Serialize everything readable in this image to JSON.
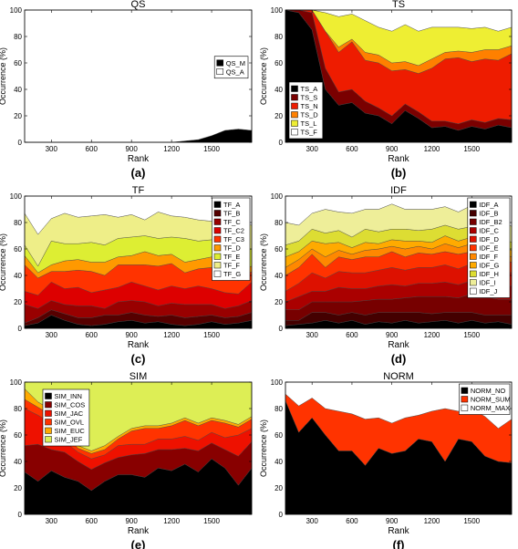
{
  "chart_data": [
    {
      "type": "area",
      "title": "QS",
      "panel_label": "(a)",
      "xlabel": "Rank",
      "ylabel": "Occurrence (%)",
      "xlim": [
        100,
        1800
      ],
      "ylim": [
        0,
        100
      ],
      "xticks": [
        300,
        600,
        900,
        1200,
        1500
      ],
      "yticks": [
        0,
        20,
        40,
        60,
        80,
        100
      ],
      "legend_position": "middle-right",
      "x": [
        100,
        200,
        300,
        400,
        500,
        600,
        700,
        800,
        900,
        1000,
        1100,
        1200,
        1300,
        1400,
        1500,
        1600,
        1700,
        1800
      ],
      "series": [
        {
          "name": "QS_M",
          "color": "#000000",
          "values": [
            0,
            0,
            0,
            0,
            0,
            0,
            0,
            0,
            0,
            0,
            0,
            0,
            1,
            2,
            5,
            9,
            10,
            9
          ]
        },
        {
          "name": "QS_A",
          "color": "#ffffff",
          "values": [
            100,
            100,
            100,
            100,
            100,
            100,
            100,
            100,
            100,
            100,
            100,
            100,
            99,
            98,
            95,
            91,
            90,
            91
          ]
        }
      ]
    },
    {
      "type": "area",
      "title": "TS",
      "panel_label": "(b)",
      "xlabel": "Rank",
      "ylabel": "Occurrence (%)",
      "xlim": [
        100,
        1800
      ],
      "ylim": [
        0,
        100
      ],
      "xticks": [
        300,
        600,
        900,
        1200,
        1500
      ],
      "yticks": [
        0,
        20,
        40,
        60,
        80,
        100
      ],
      "legend_position": "lower-left",
      "x": [
        100,
        200,
        300,
        400,
        500,
        600,
        700,
        800,
        900,
        1000,
        1100,
        1200,
        1300,
        1400,
        1500,
        1600,
        1700,
        1800
      ],
      "series": [
        {
          "name": "TS_A",
          "color": "#000000",
          "values": [
            100,
            98,
            85,
            40,
            28,
            30,
            22,
            20,
            14,
            24,
            18,
            11,
            12,
            9,
            12,
            10,
            13,
            11
          ]
        },
        {
          "name": "TS_S",
          "color": "#7a0000",
          "values": [
            0,
            2,
            13,
            16,
            10,
            10,
            9,
            6,
            6,
            5,
            5,
            5,
            4,
            5,
            5,
            5,
            5,
            6
          ]
        },
        {
          "name": "TS_N",
          "color": "#ee1c00",
          "values": [
            0,
            0,
            2,
            28,
            30,
            36,
            31,
            34,
            34,
            26,
            29,
            40,
            47,
            50,
            44,
            48,
            44,
            50
          ]
        },
        {
          "name": "TS_D",
          "color": "#ff8000",
          "values": [
            0,
            0,
            0,
            0,
            4,
            2,
            6,
            6,
            6,
            6,
            6,
            7,
            5,
            5,
            7,
            7,
            8,
            6
          ]
        },
        {
          "name": "TS_L",
          "color": "#eeee33",
          "values": [
            0,
            0,
            0,
            14,
            23,
            19,
            24,
            21,
            24,
            28,
            26,
            24,
            19,
            18,
            18,
            17,
            14,
            14
          ]
        },
        {
          "name": "TS_F",
          "color": "#ffffff",
          "values": [
            0,
            0,
            0,
            2,
            5,
            3,
            8,
            13,
            16,
            11,
            16,
            13,
            13,
            13,
            14,
            13,
            16,
            13
          ]
        }
      ]
    },
    {
      "type": "area",
      "title": "TF",
      "panel_label": "(c)",
      "xlabel": "Rank",
      "ylabel": "Occurrence (%)",
      "xlim": [
        100,
        1800
      ],
      "ylim": [
        0,
        100
      ],
      "xticks": [
        300,
        600,
        900,
        1200,
        1500
      ],
      "yticks": [
        0,
        20,
        40,
        60,
        80,
        100
      ],
      "legend_position": "top-right",
      "x": [
        100,
        200,
        300,
        400,
        500,
        600,
        700,
        800,
        900,
        1000,
        1100,
        1200,
        1300,
        1400,
        1500,
        1600,
        1700,
        1800
      ],
      "series": [
        {
          "name": "TF_A",
          "color": "#000000",
          "values": [
            2,
            4,
            10,
            6,
            3,
            2,
            3,
            5,
            6,
            4,
            5,
            3,
            2,
            3,
            5,
            3,
            4,
            6
          ]
        },
        {
          "name": "TF_B",
          "color": "#550000",
          "values": [
            2,
            4,
            4,
            5,
            5,
            6,
            7,
            5,
            6,
            6,
            4,
            7,
            6,
            6,
            5,
            5,
            5,
            6
          ]
        },
        {
          "name": "TF_C",
          "color": "#990000",
          "values": [
            14,
            7,
            7,
            7,
            9,
            9,
            5,
            10,
            9,
            10,
            8,
            9,
            10,
            9,
            8,
            7,
            8,
            9
          ]
        },
        {
          "name": "TF_C2",
          "color": "#dd0000",
          "values": [
            10,
            10,
            14,
            12,
            14,
            10,
            14,
            11,
            14,
            12,
            12,
            13,
            12,
            14,
            12,
            12,
            9,
            14
          ]
        },
        {
          "name": "TF_C3",
          "color": "#ff3300",
          "values": [
            20,
            13,
            8,
            13,
            13,
            16,
            11,
            17,
            13,
            16,
            18,
            17,
            12,
            13,
            16,
            14,
            10,
            8
          ]
        },
        {
          "name": "TF_D",
          "color": "#ff9900",
          "values": [
            7,
            4,
            5,
            8,
            8,
            7,
            10,
            6,
            7,
            10,
            8,
            7,
            8,
            7,
            8,
            7,
            8,
            4
          ]
        },
        {
          "name": "TF_E",
          "color": "#ddee33",
          "values": [
            8,
            5,
            18,
            13,
            12,
            15,
            13,
            14,
            14,
            12,
            13,
            13,
            18,
            14,
            13,
            16,
            15,
            13
          ]
        },
        {
          "name": "TF_F",
          "color": "#eeee88",
          "values": [
            24,
            24,
            17,
            23,
            20,
            20,
            23,
            16,
            17,
            12,
            20,
            16,
            16,
            16,
            14,
            14,
            20,
            18
          ]
        },
        {
          "name": "TF_G",
          "color": "#ffffff",
          "values": [
            13,
            29,
            17,
            13,
            16,
            15,
            14,
            16,
            14,
            18,
            12,
            15,
            16,
            18,
            19,
            22,
            21,
            22
          ]
        }
      ]
    },
    {
      "type": "area",
      "title": "IDF",
      "panel_label": "(d)",
      "xlabel": "Rank",
      "ylabel": "Occurrence (%)",
      "xlim": [
        100,
        1800
      ],
      "ylim": [
        0,
        100
      ],
      "xticks": [
        300,
        600,
        900,
        1200,
        1500
      ],
      "yticks": [
        0,
        20,
        40,
        60,
        80,
        100
      ],
      "legend_position": "top-right",
      "x": [
        100,
        200,
        300,
        400,
        500,
        600,
        700,
        800,
        900,
        1000,
        1100,
        1200,
        1300,
        1400,
        1500,
        1600,
        1700,
        1800
      ],
      "series": [
        {
          "name": "IDF_A",
          "color": "#000000",
          "values": [
            2,
            3,
            4,
            6,
            4,
            6,
            3,
            5,
            4,
            6,
            4,
            5,
            6,
            4,
            6,
            4,
            5,
            3
          ]
        },
        {
          "name": "IDF_B",
          "color": "#440000",
          "values": [
            4,
            3,
            8,
            6,
            6,
            6,
            7,
            7,
            8,
            6,
            8,
            6,
            6,
            8,
            6,
            6,
            5,
            7
          ]
        },
        {
          "name": "IDF_B2",
          "color": "#770000",
          "values": [
            8,
            8,
            8,
            8,
            10,
            8,
            11,
            10,
            10,
            11,
            12,
            13,
            12,
            11,
            14,
            14,
            12,
            12
          ]
        },
        {
          "name": "IDF_C",
          "color": "#aa0000",
          "values": [
            6,
            10,
            8,
            8,
            11,
            10,
            9,
            10,
            11,
            9,
            10,
            10,
            11,
            10,
            10,
            10,
            10,
            10
          ]
        },
        {
          "name": "IDF_D",
          "color": "#dd1100",
          "values": [
            8,
            10,
            14,
            10,
            12,
            12,
            12,
            12,
            13,
            12,
            12,
            12,
            13,
            12,
            13,
            11,
            12,
            10
          ]
        },
        {
          "name": "IDF_E",
          "color": "#ff3300",
          "values": [
            12,
            12,
            14,
            8,
            11,
            10,
            12,
            10,
            12,
            10,
            11,
            10,
            10,
            11,
            9,
            10,
            9,
            8
          ]
        },
        {
          "name": "IDF_F",
          "color": "#ff8800",
          "values": [
            6,
            6,
            4,
            8,
            5,
            4,
            5,
            6,
            4,
            6,
            5,
            4,
            6,
            5,
            6,
            4,
            5,
            4
          ]
        },
        {
          "name": "IDF_G",
          "color": "#ffaa00",
          "values": [
            8,
            6,
            6,
            10,
            6,
            5,
            6,
            4,
            5,
            6,
            4,
            5,
            6,
            5,
            5,
            4,
            4,
            5
          ]
        },
        {
          "name": "IDF_H",
          "color": "#dddd33",
          "values": [
            9,
            8,
            9,
            8,
            9,
            8,
            10,
            9,
            8,
            9,
            8,
            10,
            8,
            9,
            8,
            9,
            8,
            6
          ]
        },
        {
          "name": "IDF_I",
          "color": "#eeee99",
          "values": [
            17,
            12,
            12,
            18,
            14,
            18,
            15,
            17,
            19,
            15,
            16,
            15,
            14,
            13,
            16,
            13,
            14,
            12
          ]
        },
        {
          "name": "IDF_J",
          "color": "#ffffff",
          "values": [
            20,
            22,
            13,
            10,
            12,
            13,
            10,
            10,
            6,
            10,
            10,
            10,
            8,
            12,
            7,
            15,
            16,
            23
          ]
        }
      ]
    },
    {
      "type": "area",
      "title": "SIM",
      "panel_label": "(e)",
      "xlabel": "Rank",
      "ylabel": "Occurrence (%)",
      "xlim": [
        100,
        1800
      ],
      "ylim": [
        0,
        100
      ],
      "xticks": [
        300,
        600,
        900,
        1200,
        1500
      ],
      "yticks": [
        0,
        20,
        40,
        60,
        80,
        100
      ],
      "legend_position": "top-left",
      "x": [
        100,
        200,
        300,
        400,
        500,
        600,
        700,
        800,
        900,
        1000,
        1100,
        1200,
        1300,
        1400,
        1500,
        1600,
        1700,
        1800
      ],
      "series": [
        {
          "name": "SIM_INN",
          "color": "#000000",
          "values": [
            32,
            25,
            33,
            28,
            25,
            18,
            25,
            30,
            30,
            28,
            35,
            33,
            38,
            32,
            42,
            35,
            22,
            35
          ]
        },
        {
          "name": "SIM_COS",
          "color": "#880000",
          "values": [
            20,
            28,
            16,
            19,
            15,
            16,
            14,
            13,
            15,
            18,
            14,
            16,
            12,
            16,
            12,
            14,
            22,
            20
          ]
        },
        {
          "name": "SIM_JAC",
          "color": "#ee1100",
          "values": [
            28,
            22,
            20,
            8,
            7,
            8,
            6,
            9,
            8,
            7,
            8,
            8,
            9,
            8,
            8,
            9,
            16,
            10
          ]
        },
        {
          "name": "SIM_OVL",
          "color": "#ff3300",
          "values": [
            7,
            6,
            6,
            4,
            3,
            4,
            4,
            5,
            10,
            12,
            8,
            10,
            12,
            11,
            9,
            11,
            6,
            7
          ]
        },
        {
          "name": "SIM_EUC",
          "color": "#ffaa00",
          "values": [
            8,
            4,
            4,
            2,
            2,
            2,
            3,
            2,
            2,
            2,
            2,
            2,
            2,
            2,
            2,
            2,
            2,
            2
          ]
        },
        {
          "name": "SIM_JEF",
          "color": "#ddee55",
          "values": [
            5,
            15,
            21,
            39,
            48,
            52,
            48,
            41,
            35,
            33,
            33,
            31,
            27,
            31,
            27,
            29,
            32,
            26
          ]
        }
      ]
    },
    {
      "type": "area",
      "title": "NORM",
      "panel_label": "(f)",
      "xlabel": "Rank",
      "ylabel": "Occurrence (%)",
      "xlim": [
        100,
        1800
      ],
      "ylim": [
        0,
        100
      ],
      "xticks": [
        300,
        600,
        900,
        1200,
        1500
      ],
      "yticks": [
        0,
        20,
        40,
        60,
        80,
        100
      ],
      "legend_position": "top-right",
      "x": [
        100,
        200,
        300,
        400,
        500,
        600,
        700,
        800,
        900,
        1000,
        1100,
        1200,
        1300,
        1400,
        1500,
        1600,
        1700,
        1800
      ],
      "series": [
        {
          "name": "NORM_NO",
          "color": "#000000",
          "values": [
            86,
            62,
            73,
            60,
            48,
            48,
            37,
            50,
            46,
            48,
            57,
            55,
            40,
            57,
            55,
            44,
            40,
            39
          ]
        },
        {
          "name": "NORM_SUM",
          "color": "#ff3300",
          "values": [
            5,
            20,
            15,
            20,
            30,
            28,
            35,
            23,
            23,
            25,
            18,
            23,
            40,
            21,
            25,
            30,
            25,
            33
          ]
        },
        {
          "name": "NORM_MAX",
          "color": "#ffffff",
          "values": [
            9,
            18,
            12,
            20,
            22,
            24,
            28,
            27,
            31,
            27,
            25,
            22,
            20,
            22,
            20,
            26,
            35,
            28
          ]
        }
      ]
    }
  ]
}
